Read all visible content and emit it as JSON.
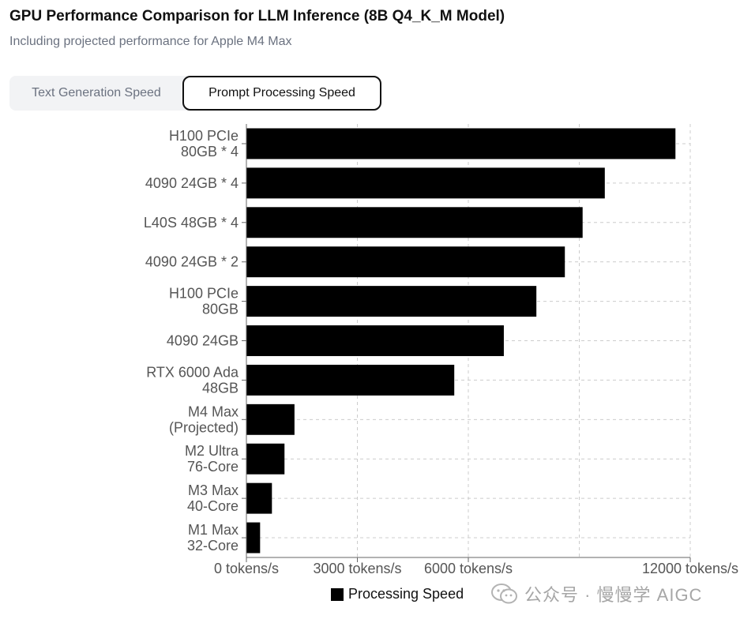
{
  "header": {
    "title": "GPU Performance Comparison for LLM Inference (8B Q4_K_M Model)",
    "subtitle": "Including projected performance for Apple M4 Max"
  },
  "tabs": [
    {
      "label": "Text Generation Speed",
      "active": false
    },
    {
      "label": "Prompt Processing Speed",
      "active": true
    }
  ],
  "chart_data": {
    "type": "bar",
    "orientation": "horizontal",
    "categories": [
      [
        "H100 PCIe",
        "80GB * 4"
      ],
      [
        "4090 24GB * 4"
      ],
      [
        "L40S 48GB * 4"
      ],
      [
        "4090 24GB * 2"
      ],
      [
        "H100 PCIe",
        "80GB"
      ],
      [
        "4090 24GB"
      ],
      [
        "RTX 6000 Ada",
        "48GB"
      ],
      [
        "M4 Max",
        "(Projected)"
      ],
      [
        "M2 Ultra",
        "76-Core"
      ],
      [
        "M3 Max",
        "40-Core"
      ],
      [
        "M1 Max",
        "32-Core"
      ]
    ],
    "series": [
      {
        "name": "Processing Speed",
        "color": "#000000",
        "values": [
          11600,
          9690,
          9090,
          8610,
          7840,
          6960,
          5620,
          1300,
          1030,
          690,
          370
        ]
      }
    ],
    "x_ticks": [
      0,
      3000,
      6000,
      12000
    ],
    "x_tick_labels": [
      "0 tokens/s",
      "3000 tokens/s",
      "6000 tokens/s",
      "12000 tokens/s"
    ],
    "x_grid_extra": [
      9000
    ],
    "xlim": [
      0,
      12000
    ],
    "grid": true,
    "legend_position": "bottom-center"
  },
  "watermark": {
    "text": "公众号 · 慢慢学 AIGC",
    "icon": "wechat-icon"
  }
}
